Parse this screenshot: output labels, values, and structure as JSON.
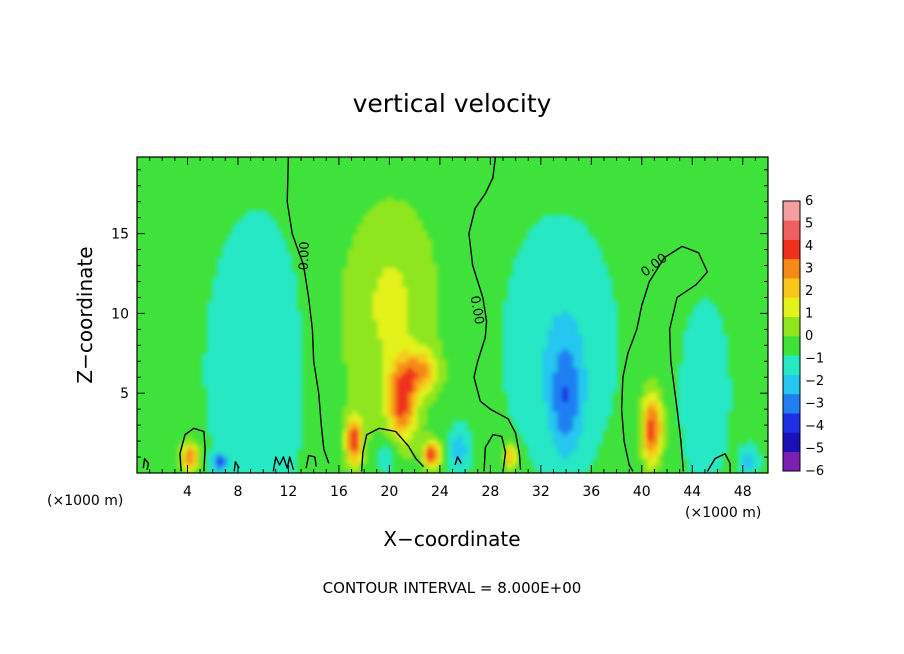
{
  "chart_data": {
    "type": "heatmap",
    "title": "vertical velocity",
    "xlabel": "X−coordinate",
    "ylabel": "Z−coordinate",
    "x_unit_left": "(×1000 m)",
    "x_unit_right": "(×1000 m)",
    "xlim": [
      0,
      50
    ],
    "ylim": [
      0,
      19.8
    ],
    "x_ticks": [
      4,
      8,
      12,
      16,
      20,
      24,
      28,
      32,
      36,
      40,
      44,
      48
    ],
    "x_tick_labels": [
      "4",
      "8",
      "12",
      "16",
      "20",
      "24",
      "28",
      "32",
      "36",
      "40",
      "44",
      "48"
    ],
    "y_ticks": [
      5,
      10,
      15
    ],
    "y_tick_labels": [
      "5",
      "10",
      "15"
    ],
    "footnote": "CONTOUR INTERVAL = 8.000E+00",
    "contour_label": "0.00",
    "colorbar": {
      "min": -6,
      "max": 6,
      "levels": [
        -6,
        -5,
        -4,
        -3,
        -2,
        -1,
        0,
        1,
        2,
        3,
        4,
        5,
        6
      ],
      "labels": [
        "−6",
        "−5",
        "−4",
        "−3",
        "−2",
        "−1",
        "0",
        "1",
        "2",
        "3",
        "4",
        "5",
        "6"
      ],
      "colors": [
        "#7a1fb0",
        "#1a10b8",
        "#1e30e6",
        "#1f7ef2",
        "#25c6f0",
        "#26e8c4",
        "#3fe23a",
        "#8fe61f",
        "#e3f21b",
        "#f7c81a",
        "#f58a17",
        "#f0301c",
        "#f05f5f",
        "#f4a0a0"
      ]
    },
    "background_value": 0.3,
    "features": [
      {
        "x": 4.2,
        "z": 1.0,
        "amp": 4.5,
        "sx": 0.5,
        "sz": 0.7
      },
      {
        "x": 6.6,
        "z": 0.7,
        "amp": -3.2,
        "sx": 0.4,
        "sz": 0.4
      },
      {
        "x": 17.2,
        "z": 2.0,
        "amp": 5.0,
        "sx": 0.5,
        "sz": 1.1
      },
      {
        "x": 21.0,
        "z": 4.6,
        "amp": 4.6,
        "sx": 0.8,
        "sz": 1.7
      },
      {
        "x": 22.6,
        "z": 6.4,
        "amp": 3.0,
        "sx": 0.9,
        "sz": 0.9
      },
      {
        "x": 23.4,
        "z": 1.2,
        "amp": 5.0,
        "sx": 0.5,
        "sz": 0.6
      },
      {
        "x": 19.8,
        "z": 8.5,
        "amp": 1.2,
        "sx": 3.0,
        "sz": 5.0
      },
      {
        "x": 20.3,
        "z": 12.5,
        "amp": 0.9,
        "sx": 2.5,
        "sz": 4.0
      },
      {
        "x": 29.6,
        "z": 1.1,
        "amp": 3.5,
        "sx": 0.4,
        "sz": 0.6
      },
      {
        "x": 40.8,
        "z": 2.8,
        "amp": 5.2,
        "sx": 0.6,
        "sz": 1.6
      },
      {
        "x": 34.0,
        "z": 4.6,
        "amp": -2.4,
        "sx": 0.9,
        "sz": 2.5
      },
      {
        "x": 33.5,
        "z": 8.0,
        "amp": -1.2,
        "sx": 2.8,
        "sz": 5.0
      },
      {
        "x": 9.5,
        "z": 6.5,
        "amp": -1.2,
        "sx": 2.5,
        "sz": 6.0
      },
      {
        "x": 45.0,
        "z": 5.0,
        "amp": -1.3,
        "sx": 1.2,
        "sz": 3.5
      },
      {
        "x": 48.5,
        "z": 0.8,
        "amp": -2.0,
        "sx": 0.5,
        "sz": 0.6
      },
      {
        "x": 25.5,
        "z": 1.5,
        "amp": -2.0,
        "sx": 0.6,
        "sz": 1.0
      },
      {
        "x": 19.8,
        "z": 1.0,
        "amp": -1.5,
        "sx": 0.6,
        "sz": 0.8
      }
    ],
    "zero_contours": [
      [
        [
          12.0,
          19.8
        ],
        [
          11.9,
          17.0
        ],
        [
          12.3,
          15.0
        ],
        [
          13.2,
          13.0
        ],
        [
          13.6,
          11.0
        ],
        [
          13.9,
          9.0
        ],
        [
          14.0,
          7.0
        ],
        [
          14.4,
          5.0
        ],
        [
          14.6,
          3.0
        ],
        [
          14.8,
          1.5
        ],
        [
          15.2,
          0.6
        ]
      ],
      [
        [
          28.4,
          19.8
        ],
        [
          28.2,
          18.5
        ],
        [
          27.6,
          17.5
        ],
        [
          26.8,
          16.6
        ],
        [
          26.3,
          15.0
        ],
        [
          26.6,
          13.0
        ],
        [
          27.4,
          11.0
        ],
        [
          27.7,
          9.5
        ],
        [
          27.6,
          8.5
        ],
        [
          27.0,
          7.0
        ],
        [
          26.7,
          6.0
        ],
        [
          27.2,
          4.5
        ],
        [
          28.0,
          4.0
        ],
        [
          29.4,
          3.4
        ],
        [
          30.0,
          2.5
        ],
        [
          30.3,
          1.2
        ],
        [
          30.4,
          0.2
        ]
      ],
      [
        [
          40.0,
          10.5
        ],
        [
          39.6,
          9.0
        ],
        [
          38.9,
          7.5
        ],
        [
          38.5,
          6.0
        ],
        [
          38.4,
          4.0
        ],
        [
          38.6,
          2.0
        ],
        [
          39.0,
          0.5
        ],
        [
          39.3,
          0.1
        ]
      ],
      [
        [
          40.0,
          10.5
        ],
        [
          40.6,
          12.0
        ],
        [
          41.8,
          13.5
        ],
        [
          43.2,
          14.2
        ],
        [
          44.5,
          13.8
        ],
        [
          45.2,
          12.6
        ],
        [
          44.3,
          11.8
        ],
        [
          42.8,
          11.0
        ],
        [
          42.2,
          9.0
        ],
        [
          42.3,
          7.0
        ],
        [
          42.8,
          4.0
        ],
        [
          43.1,
          2.0
        ],
        [
          43.3,
          0.1
        ]
      ],
      [
        [
          3.5,
          0.1
        ],
        [
          3.4,
          1.2
        ],
        [
          3.8,
          2.4
        ],
        [
          4.5,
          2.8
        ],
        [
          5.3,
          2.6
        ],
        [
          5.4,
          1.5
        ],
        [
          5.3,
          0.1
        ]
      ],
      [
        [
          17.8,
          0.1
        ],
        [
          17.9,
          1.3
        ],
        [
          18.2,
          2.4
        ],
        [
          19.2,
          2.8
        ],
        [
          20.5,
          2.6
        ],
        [
          21.5,
          1.7
        ],
        [
          22.1,
          0.9
        ],
        [
          22.7,
          0.4
        ]
      ],
      [
        [
          27.5,
          0.1
        ],
        [
          27.6,
          1.6
        ],
        [
          28.2,
          2.4
        ],
        [
          28.9,
          2.3
        ],
        [
          29.2,
          1.3
        ],
        [
          29.0,
          0.1
        ]
      ],
      [
        [
          0.5,
          0.3
        ],
        [
          0.6,
          0.9
        ],
        [
          0.9,
          0.6
        ],
        [
          0.8,
          0.2
        ]
      ],
      [
        [
          7.7,
          0.1
        ],
        [
          7.8,
          0.7
        ],
        [
          8.1,
          0.3
        ]
      ],
      [
        [
          10.8,
          0.1
        ],
        [
          11.0,
          1.0
        ],
        [
          11.3,
          0.5
        ],
        [
          11.6,
          1.0
        ],
        [
          11.9,
          0.3
        ],
        [
          12.1,
          1.0
        ],
        [
          12.4,
          0.2
        ]
      ],
      [
        [
          13.4,
          0.3
        ],
        [
          13.6,
          1.1
        ],
        [
          14.1,
          1.0
        ],
        [
          14.2,
          0.4
        ]
      ],
      [
        [
          25.2,
          0.5
        ],
        [
          25.4,
          1.0
        ],
        [
          25.7,
          0.6
        ]
      ],
      [
        [
          45.2,
          0.1
        ],
        [
          45.8,
          0.9
        ],
        [
          46.6,
          1.2
        ],
        [
          47.0,
          0.6
        ],
        [
          47.0,
          0.1
        ]
      ]
    ],
    "contour_label_positions": [
      {
        "x": 13.3,
        "z": 13.6,
        "angle": -88
      },
      {
        "x": 26.9,
        "z": 10.2,
        "angle": 80
      },
      {
        "x": 41.0,
        "z": 13.0,
        "angle": -38
      }
    ]
  }
}
